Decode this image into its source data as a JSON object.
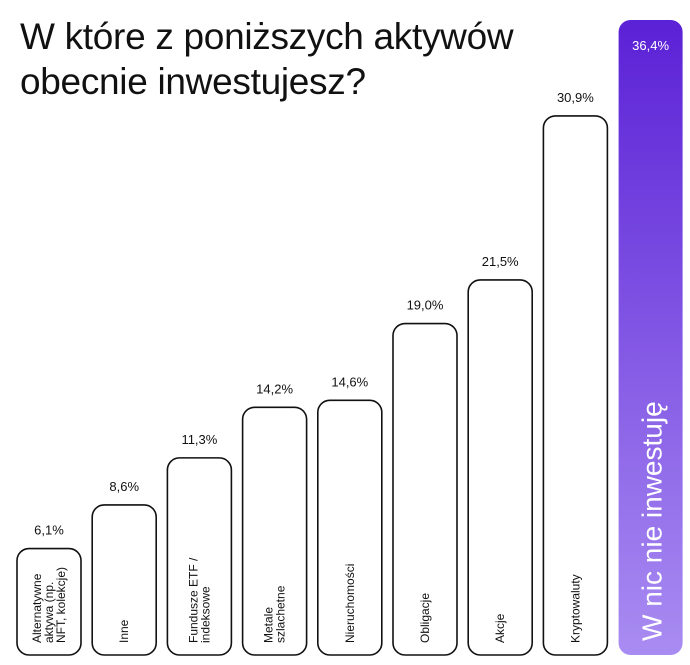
{
  "title": "W które z poniższych aktywów obecnie inwestujesz?",
  "chart_data": {
    "type": "bar",
    "title": "W które z poniższych aktywów obecnie inwestujesz?",
    "categories": [
      "Alternatywne aktywa (np. NFT, kolekcje)",
      "Inne",
      "Fundusze ETF / indeksowe",
      "Metale szlachetne",
      "Nieruchomości",
      "Obligacje",
      "Akcje",
      "Kryptowaluty",
      "W nic nie inwestuję"
    ],
    "category_lines": [
      [
        "Alternatywne",
        "aktywa (np.",
        "NFT, kolekcje)"
      ],
      [
        "Inne"
      ],
      [
        "Fundusze ETF /",
        "indeksowe"
      ],
      [
        "Metale",
        "szlachetne"
      ],
      [
        "Nieruchomości"
      ],
      [
        "Obligacje"
      ],
      [
        "Akcje"
      ],
      [
        "Kryptowaluty"
      ],
      [
        "W nic nie inwestuję"
      ]
    ],
    "values": [
      6.1,
      8.6,
      11.3,
      14.2,
      14.6,
      19.0,
      21.5,
      30.9,
      36.4
    ],
    "value_labels": [
      "6,1%",
      "8,6%",
      "11,3%",
      "14,2%",
      "14,6%",
      "19,0%",
      "21,5%",
      "30,9%",
      "36,4%"
    ],
    "ylim": [
      0,
      36.4
    ],
    "grid": false,
    "legend": "none",
    "colors": {
      "bar_fill": "#ffffff",
      "bar_stroke": "#111111",
      "highlight_top": "#5b21d6",
      "highlight_bottom": "#a98cf2",
      "highlight_text": "#ffffff"
    }
  }
}
